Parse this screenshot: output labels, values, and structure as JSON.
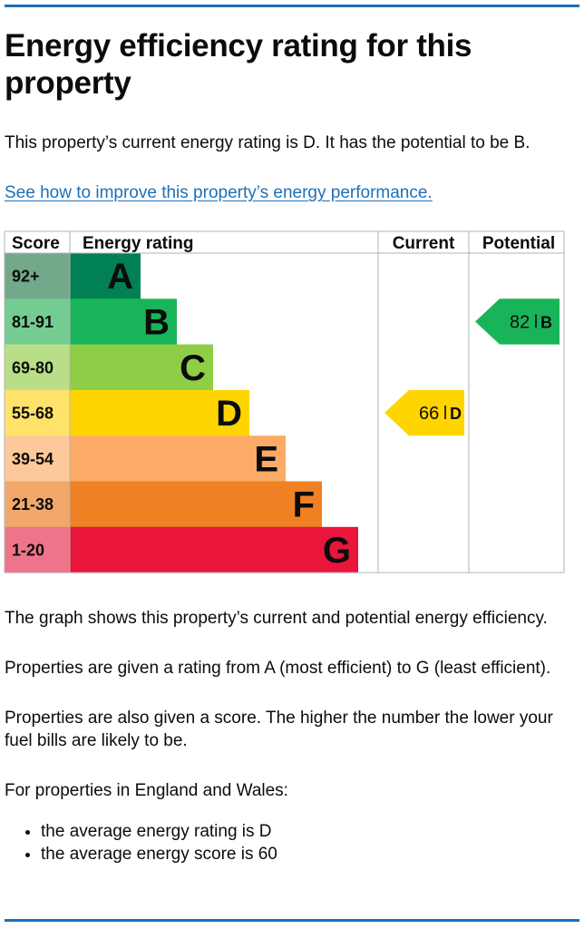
{
  "page": {
    "title": "Energy efficiency rating for this property",
    "summary": "This property’s current energy rating is D. It has the potential to be B.",
    "improve_link": "See how to improve this property’s energy performance.",
    "explanation": [
      "The graph shows this property’s current and potential energy efficiency.",
      "Properties are given a rating from A (most efficient) to G (least efficient).",
      "Properties are also given a score. The higher the number the lower your fuel bills are likely to be.",
      "For properties in England and Wales:"
    ],
    "averages": [
      "the average energy rating is D",
      "the average energy score is 60"
    ]
  },
  "chart_data": {
    "type": "bar",
    "columns": [
      "Score",
      "Energy rating",
      "Current",
      "Potential"
    ],
    "bands": [
      {
        "letter": "A",
        "score": "92+",
        "color": "#008054",
        "score_color": "#73a88b"
      },
      {
        "letter": "B",
        "score": "81-91",
        "color": "#19b459",
        "score_color": "#75cc90"
      },
      {
        "letter": "C",
        "score": "69-80",
        "color": "#8dce46",
        "score_color": "#b8df88"
      },
      {
        "letter": "D",
        "score": "55-68",
        "color": "#ffd500",
        "score_color": "#ffe26a"
      },
      {
        "letter": "E",
        "score": "39-54",
        "color": "#fcaa65",
        "score_color": "#fdc89a"
      },
      {
        "letter": "F",
        "score": "21-38",
        "color": "#ef8023",
        "score_color": "#f2a86b"
      },
      {
        "letter": "G",
        "score": "1-20",
        "color": "#e9153b",
        "score_color": "#ee7489"
      }
    ],
    "current": {
      "score": 66,
      "letter": "D",
      "color": "#ffd500"
    },
    "potential": {
      "score": 82,
      "letter": "B",
      "color": "#19b459"
    }
  }
}
